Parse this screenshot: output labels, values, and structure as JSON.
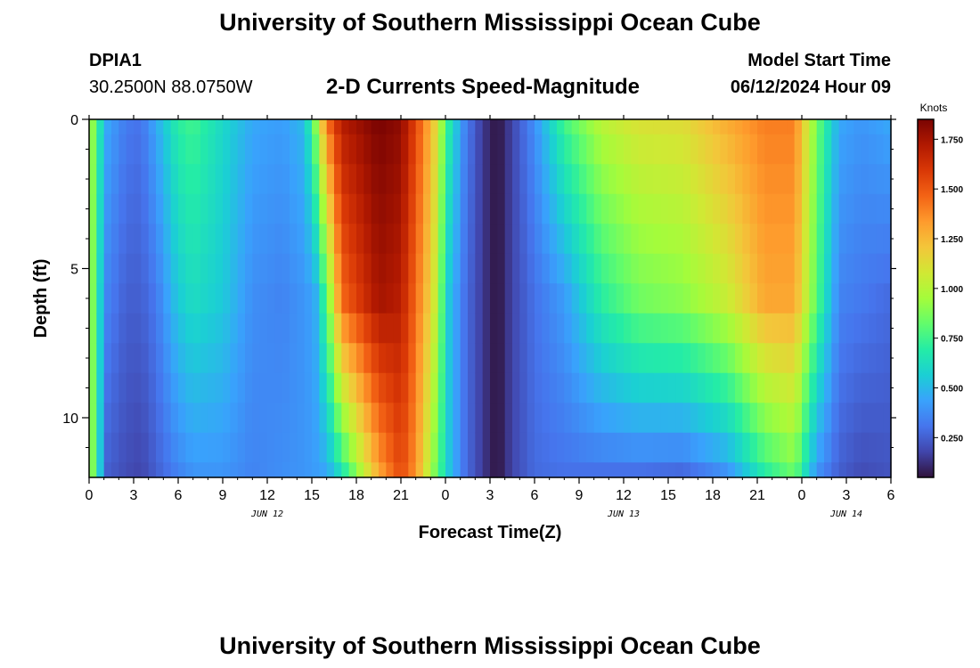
{
  "header": {
    "title_top": "University of Southern Mississippi Ocean Cube",
    "station_id": "DPIA1",
    "coordinates": "30.2500N  88.0750W",
    "plot_title": "2-D Currents Speed-Magnitude",
    "model_start_label": "Model Start Time",
    "model_start_value": "06/12/2024 Hour 09",
    "title_bottom": "University of Southern Mississippi Ocean Cube"
  },
  "colors": {
    "colormap": [
      "#30123b",
      "#4145ab",
      "#4675ed",
      "#39a2fc",
      "#1bcfd4",
      "#24eca6",
      "#61fc6c",
      "#a4fc3b",
      "#d1e834",
      "#f3c63a",
      "#fe9b2d",
      "#f36315",
      "#d93806",
      "#b11901",
      "#7a0402"
    ]
  },
  "chart_data": {
    "type": "heatmap",
    "title": "2-D Currents Speed-Magnitude",
    "xlabel": "Forecast Time(Z)",
    "ylabel": "Depth (ft)",
    "colorbar_label": "Knots",
    "x_range_hours": [
      0,
      54
    ],
    "y_range_ft": [
      0,
      12
    ],
    "color_range": [
      0.05,
      1.85
    ],
    "x_ticks": [
      {
        "hour": 0,
        "label": "0"
      },
      {
        "hour": 3,
        "label": "3"
      },
      {
        "hour": 6,
        "label": "6"
      },
      {
        "hour": 9,
        "label": "9"
      },
      {
        "hour": 12,
        "label": "12"
      },
      {
        "hour": 15,
        "label": "15"
      },
      {
        "hour": 18,
        "label": "18"
      },
      {
        "hour": 21,
        "label": "21"
      },
      {
        "hour": 24,
        "label": "0"
      },
      {
        "hour": 27,
        "label": "3"
      },
      {
        "hour": 30,
        "label": "6"
      },
      {
        "hour": 33,
        "label": "9"
      },
      {
        "hour": 36,
        "label": "12"
      },
      {
        "hour": 39,
        "label": "15"
      },
      {
        "hour": 42,
        "label": "18"
      },
      {
        "hour": 45,
        "label": "21"
      },
      {
        "hour": 48,
        "label": "0"
      },
      {
        "hour": 51,
        "label": "3"
      },
      {
        "hour": 54,
        "label": "6"
      }
    ],
    "date_labels": [
      {
        "hour": 12,
        "label": "JUN 12"
      },
      {
        "hour": 36,
        "label": "JUN 13"
      },
      {
        "hour": 51,
        "label": "JUN 14"
      }
    ],
    "y_ticks": [
      {
        "depth": 0,
        "label": "0"
      },
      {
        "depth": 5,
        "label": "5"
      },
      {
        "depth": 10,
        "label": "10"
      }
    ],
    "colorbar_ticks": [
      {
        "value": 0.25,
        "label": "0.250"
      },
      {
        "value": 0.5,
        "label": "0.500"
      },
      {
        "value": 0.75,
        "label": "0.750"
      },
      {
        "value": 1.0,
        "label": "1.000"
      },
      {
        "value": 1.25,
        "label": "1.250"
      },
      {
        "value": 1.5,
        "label": "1.500"
      },
      {
        "value": 1.75,
        "label": "1.750"
      }
    ],
    "depth_levels_ft": [
      0,
      1,
      2,
      3,
      4,
      5,
      6,
      7,
      8,
      9,
      10,
      11,
      12
    ],
    "profile_depths_ft": [
      0,
      6,
      12
    ],
    "time_profiles": [
      {
        "hour": 0,
        "speeds": [
          1.05,
          1.05,
          1.05
        ]
      },
      {
        "hour": 0.5,
        "speeds": [
          0.75,
          0.7,
          0.7
        ]
      },
      {
        "hour": 1.2,
        "speeds": [
          0.45,
          0.35,
          0.25
        ]
      },
      {
        "hour": 2.5,
        "speeds": [
          0.32,
          0.25,
          0.2
        ]
      },
      {
        "hour": 3.5,
        "speeds": [
          0.3,
          0.25,
          0.18
        ]
      },
      {
        "hour": 4.5,
        "speeds": [
          0.45,
          0.32,
          0.25
        ]
      },
      {
        "hour": 6,
        "speeds": [
          0.7,
          0.55,
          0.35
        ]
      },
      {
        "hour": 7,
        "speeds": [
          0.75,
          0.62,
          0.4
        ]
      },
      {
        "hour": 9,
        "speeds": [
          0.6,
          0.55,
          0.4
        ]
      },
      {
        "hour": 11,
        "speeds": [
          0.45,
          0.38,
          0.35
        ]
      },
      {
        "hour": 13,
        "speeds": [
          0.42,
          0.35,
          0.38
        ]
      },
      {
        "hour": 14.5,
        "speeds": [
          0.5,
          0.4,
          0.4
        ]
      },
      {
        "hour": 15.2,
        "speeds": [
          0.85,
          0.45,
          0.42
        ]
      },
      {
        "hour": 16,
        "speeds": [
          1.4,
          0.8,
          0.45
        ]
      },
      {
        "hour": 17,
        "speeds": [
          1.7,
          1.45,
          0.65
        ]
      },
      {
        "hour": 19.5,
        "speeds": [
          1.85,
          1.75,
          1.3
        ]
      },
      {
        "hour": 21,
        "speeds": [
          1.8,
          1.7,
          1.55
        ]
      },
      {
        "hour": 22,
        "speeds": [
          1.55,
          1.45,
          1.35
        ]
      },
      {
        "hour": 23.2,
        "speeds": [
          1.2,
          1.1,
          0.9
        ]
      },
      {
        "hour": 24.2,
        "speeds": [
          0.7,
          0.55,
          0.55
        ]
      },
      {
        "hour": 25.3,
        "speeds": [
          0.35,
          0.3,
          0.3
        ]
      },
      {
        "hour": 26.5,
        "speeds": [
          0.15,
          0.15,
          0.15
        ]
      },
      {
        "hour": 27.5,
        "speeds": [
          0.05,
          0.05,
          0.05
        ]
      },
      {
        "hour": 28.5,
        "speeds": [
          0.18,
          0.18,
          0.18
        ]
      },
      {
        "hour": 30,
        "speeds": [
          0.38,
          0.3,
          0.28
        ]
      },
      {
        "hour": 32,
        "speeds": [
          0.75,
          0.42,
          0.3
        ]
      },
      {
        "hour": 34.5,
        "speeds": [
          1.0,
          0.7,
          0.3
        ]
      },
      {
        "hour": 37,
        "speeds": [
          1.1,
          0.85,
          0.3
        ]
      },
      {
        "hour": 40,
        "speeds": [
          1.12,
          0.9,
          0.28
        ]
      },
      {
        "hour": 43,
        "speeds": [
          1.28,
          1.05,
          0.4
        ]
      },
      {
        "hour": 45.5,
        "speeds": [
          1.4,
          1.3,
          0.7
        ]
      },
      {
        "hour": 47.5,
        "speeds": [
          1.4,
          1.3,
          0.85
        ]
      },
      {
        "hour": 49,
        "speeds": [
          0.85,
          0.8,
          0.4
        ]
      },
      {
        "hour": 50.5,
        "speeds": [
          0.45,
          0.35,
          0.25
        ]
      },
      {
        "hour": 52,
        "speeds": [
          0.4,
          0.32,
          0.2
        ]
      },
      {
        "hour": 54,
        "speeds": [
          0.45,
          0.28,
          0.22
        ]
      }
    ]
  }
}
